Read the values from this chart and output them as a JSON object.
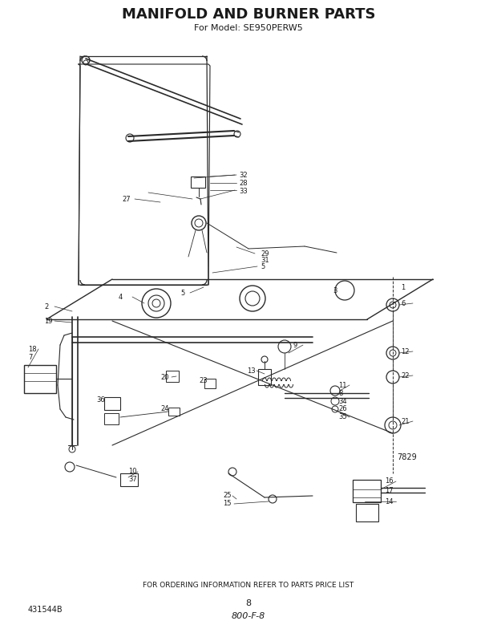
{
  "title": "MANIFOLD AND BURNER PARTS",
  "subtitle": "For Model: SE950PERW5",
  "bg_color": "#ffffff",
  "title_fontsize": 13,
  "subtitle_fontsize": 8,
  "footer_text": "FOR ORDERING INFORMATION REFER TO PARTS PRICE LIST",
  "page_number": "8",
  "page_code": "800-F-8",
  "part_number_left": "431544B",
  "diagram_number": "7829",
  "fig_width": 6.2,
  "fig_height": 7.89,
  "dpi": 100,
  "line_color": "#2a2a2a",
  "text_color": "#1a1a1a"
}
